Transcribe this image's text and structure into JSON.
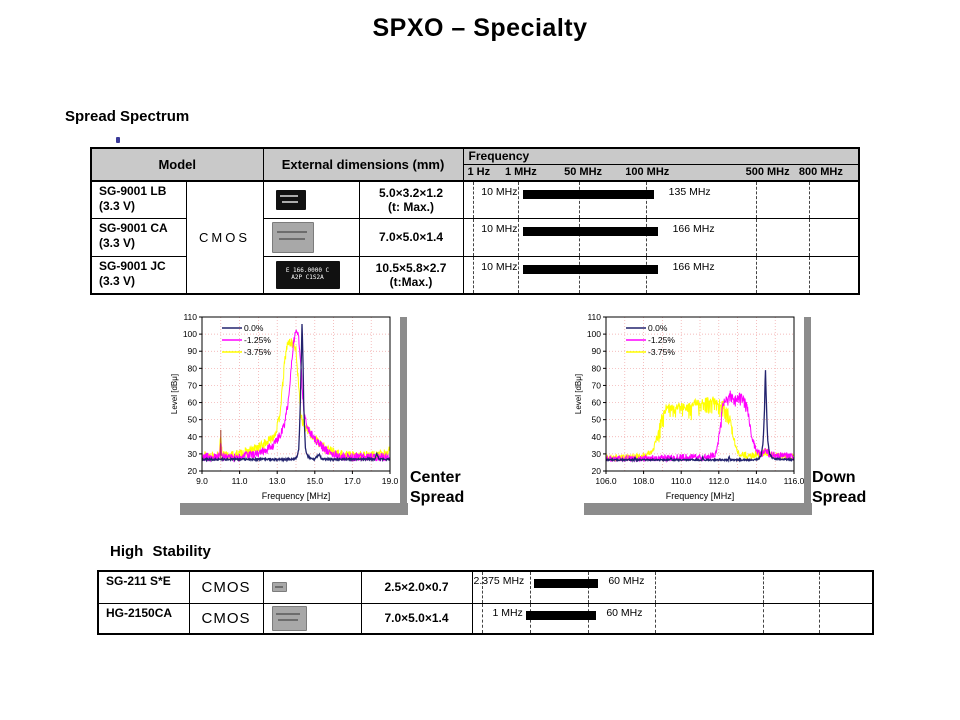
{
  "page": {
    "title": "SPXO – Specialty"
  },
  "labels": {
    "spread_spectrum": "Spread Spectrum",
    "high_stability": "High Stability",
    "center_spread_line1": "Center",
    "center_spread_line2": "Spread",
    "down_spread_line1": "Down",
    "down_spread_line2": "Spread"
  },
  "colors": {
    "header_gray": "#c9c9c9",
    "shadow_gray": "#8c8c8c",
    "bar_black": "#000000",
    "series_navy": "#23236e",
    "series_magenta": "#ff00ff",
    "series_yellow": "#ffff00",
    "grid_pink": "#f0a4a4"
  },
  "spread_table": {
    "header_model": "Model",
    "header_dimensions": "External dimensions (mm)",
    "header_frequency": "Frequency",
    "scale_labels": [
      "1 Hz",
      "1 MHz",
      "50 MHz",
      "100 MHz",
      "500 MHz",
      "800 MHz"
    ],
    "output_type": "CMOS",
    "rows": [
      {
        "model": "SG-9001 LB",
        "voltage": "(3.3 V)",
        "dims": "5.0×3.2×1.2",
        "dims_note": "(t: Max.)",
        "freq_start": "10 MHz",
        "freq_end": "135 MHz"
      },
      {
        "model": "SG-9001 CA",
        "voltage": "(3.3 V)",
        "dims": "7.0×5.0×1.4",
        "dims_note": "",
        "freq_start": "10 MHz",
        "freq_end": "166 MHz"
      },
      {
        "model": "SG-9001 JC",
        "voltage": "(3.3 V)",
        "dims": "10.5×5.8×2.7",
        "dims_note": "(t:Max.)",
        "freq_start": "10 MHz",
        "freq_end": "166 MHz"
      }
    ],
    "chip3_text_line1": "E 166.0000 C",
    "chip3_text_line2": "A2P C1S2A"
  },
  "stability_table": {
    "rows": [
      {
        "model": "SG-211 S*E",
        "output": "CMOS",
        "dims": "2.5×2.0×0.7",
        "freq_start": "2.375 MHz",
        "freq_end": "60 MHz"
      },
      {
        "model": "HG-2150CA",
        "output": "CMOS",
        "dims": "7.0×5.0×1.4",
        "freq_start": "1 MHz",
        "freq_end": "60 MHz"
      }
    ]
  },
  "chart_data": [
    {
      "type": "line",
      "name": "center_spread",
      "xlabel": "Frequency [MHz]",
      "ylabel": "Level [dBμ]",
      "xlim": [
        9.0,
        19.0
      ],
      "ylim": [
        20,
        110
      ],
      "x_grid_step": 1.0,
      "y_grid_step": 10,
      "grid_color": "#f0a4a4",
      "noise_floor": 27,
      "xtick_values": [
        9,
        11,
        13,
        15,
        17,
        19
      ],
      "xtick_labels": [
        "9.0",
        "11.0",
        "13.0",
        "15.0",
        "17.0",
        "19.0"
      ],
      "ytick_values": [
        20,
        30,
        40,
        50,
        60,
        70,
        80,
        90,
        100,
        110
      ],
      "ytick_labels": [
        "20",
        "30",
        "40",
        "50",
        "60",
        "70",
        "80",
        "90",
        "100",
        "110"
      ],
      "legend": [
        {
          "label": "0.0%",
          "color": "#23236e"
        },
        {
          "label": "-1.25%",
          "color": "#ff00ff"
        },
        {
          "label": "-3.75%",
          "color": "#ffff00"
        }
      ],
      "marker": {
        "x": 10.0,
        "y": 44,
        "color": "#a03420"
      },
      "series": [
        {
          "name": "-3.75%",
          "color": "#ffff00",
          "noise": 2.8,
          "lw": 1,
          "envelope": [
            [
              9.0,
              30
            ],
            [
              9.3,
              29
            ],
            [
              9.6,
              29
            ],
            [
              9.9,
              29
            ],
            [
              9.95,
              33
            ],
            [
              10.0,
              41
            ],
            [
              10.05,
              33
            ],
            [
              10.1,
              29
            ],
            [
              10.6,
              29
            ],
            [
              11.0,
              30
            ],
            [
              11.4,
              31
            ],
            [
              11.8,
              33
            ],
            [
              12.2,
              35
            ],
            [
              12.6,
              38
            ],
            [
              12.9,
              42
            ],
            [
              13.1,
              50
            ],
            [
              13.25,
              65
            ],
            [
              13.4,
              84
            ],
            [
              13.5,
              92
            ],
            [
              13.6,
              95
            ],
            [
              13.75,
              95
            ],
            [
              13.9,
              94
            ],
            [
              14.0,
              90
            ],
            [
              14.05,
              84
            ],
            [
              14.15,
              68
            ],
            [
              14.25,
              54
            ],
            [
              14.4,
              47
            ],
            [
              14.6,
              44
            ],
            [
              14.8,
              41
            ],
            [
              15.0,
              39
            ],
            [
              15.2,
              37
            ],
            [
              15.5,
              34
            ],
            [
              15.8,
              32
            ],
            [
              16.2,
              30
            ],
            [
              16.8,
              29
            ],
            [
              17.5,
              29
            ],
            [
              18.2,
              29
            ],
            [
              18.7,
              30
            ],
            [
              19.0,
              32
            ]
          ]
        },
        {
          "name": "-1.25%",
          "color": "#ff00ff",
          "noise": 2.5,
          "lw": 1,
          "envelope": [
            [
              9.0,
              28
            ],
            [
              9.95,
              28
            ],
            [
              10.0,
              37
            ],
            [
              10.05,
              28
            ],
            [
              10.8,
              28
            ],
            [
              11.5,
              29
            ],
            [
              12.0,
              30
            ],
            [
              12.4,
              32
            ],
            [
              12.8,
              35
            ],
            [
              13.0,
              38
            ],
            [
              13.2,
              42
            ],
            [
              13.4,
              48
            ],
            [
              13.55,
              58
            ],
            [
              13.7,
              74
            ],
            [
              13.8,
              88
            ],
            [
              13.9,
              97
            ],
            [
              14.0,
              101
            ],
            [
              14.05,
              101
            ],
            [
              14.15,
              97
            ],
            [
              14.25,
              85
            ],
            [
              14.35,
              65
            ],
            [
              14.45,
              52
            ],
            [
              14.6,
              46
            ],
            [
              14.8,
              42
            ],
            [
              15.0,
              39
            ],
            [
              15.2,
              36
            ],
            [
              15.5,
              33
            ],
            [
              15.9,
              30
            ],
            [
              16.4,
              28
            ],
            [
              17.0,
              28
            ],
            [
              18.0,
              28
            ],
            [
              19.0,
              28
            ]
          ]
        },
        {
          "name": "0.0%",
          "color": "#23236e",
          "noise": 0.5,
          "lw": 1.3,
          "envelope": [
            [
              9.0,
              26.8
            ],
            [
              13.6,
              26.8
            ],
            [
              13.9,
              27.2
            ],
            [
              14.05,
              28
            ],
            [
              14.15,
              33
            ],
            [
              14.22,
              55
            ],
            [
              14.28,
              85
            ],
            [
              14.32,
              107
            ],
            [
              14.36,
              90
            ],
            [
              14.42,
              55
            ],
            [
              14.5,
              33
            ],
            [
              14.6,
              29
            ],
            [
              14.75,
              27.5
            ],
            [
              15.0,
              27
            ],
            [
              15.25,
              30
            ],
            [
              15.35,
              27
            ],
            [
              16.0,
              26.8
            ],
            [
              18.2,
              27
            ],
            [
              18.3,
              30.5
            ],
            [
              18.4,
              27
            ],
            [
              19.0,
              26.8
            ]
          ]
        }
      ]
    },
    {
      "type": "line",
      "name": "down_spread",
      "xlabel": "Frequency [MHz]",
      "ylabel": "Level [dBμ]",
      "xlim": [
        106.0,
        116.0
      ],
      "ylim": [
        20,
        110
      ],
      "x_grid_step": 1.0,
      "y_grid_step": 10,
      "grid_color": "#f0a4a4",
      "noise_floor": 27,
      "xtick_values": [
        106,
        108,
        110,
        112,
        114,
        116
      ],
      "xtick_labels": [
        "106.0",
        "108.0",
        "110.0",
        "112.0",
        "114.0",
        "116.0"
      ],
      "ytick_values": [
        20,
        30,
        40,
        50,
        60,
        70,
        80,
        90,
        100,
        110
      ],
      "ytick_labels": [
        "20",
        "30",
        "40",
        "50",
        "60",
        "70",
        "80",
        "90",
        "100",
        "110"
      ],
      "legend": [
        {
          "label": "0.0%",
          "color": "#23236e"
        },
        {
          "label": "-1.25%",
          "color": "#ff00ff"
        },
        {
          "label": "-3.75%",
          "color": "#ffff00"
        }
      ],
      "series": [
        {
          "name": "-3.75%",
          "color": "#ffff00",
          "noise": 2,
          "notch": 9,
          "lw": 1,
          "envelope": [
            [
              106.0,
              28
            ],
            [
              106.5,
              27.5
            ],
            [
              107.2,
              28
            ],
            [
              107.8,
              28.5
            ],
            [
              108.2,
              29
            ],
            [
              108.5,
              32
            ],
            [
              108.7,
              40
            ],
            [
              108.9,
              50
            ],
            [
              109.1,
              56
            ],
            [
              109.3,
              58
            ],
            [
              109.6,
              57
            ],
            [
              110.0,
              58
            ],
            [
              110.3,
              57
            ],
            [
              110.7,
              60
            ],
            [
              111.0,
              60
            ],
            [
              111.3,
              61
            ],
            [
              111.6,
              62
            ],
            [
              111.9,
              61
            ],
            [
              112.1,
              60
            ],
            [
              112.3,
              59
            ],
            [
              112.45,
              56
            ],
            [
              112.6,
              50
            ],
            [
              112.75,
              42
            ],
            [
              112.9,
              34
            ],
            [
              113.1,
              30
            ],
            [
              113.4,
              29
            ],
            [
              113.8,
              29
            ],
            [
              114.2,
              30
            ],
            [
              114.5,
              31
            ],
            [
              114.8,
              29
            ],
            [
              115.3,
              28.5
            ],
            [
              116.0,
              28
            ]
          ]
        },
        {
          "name": "-1.25%",
          "color": "#ff00ff",
          "noise": 2,
          "notch": 5,
          "lw": 1,
          "envelope": [
            [
              106.0,
              27
            ],
            [
              107.0,
              27
            ],
            [
              108.0,
              27.5
            ],
            [
              109.0,
              27.5
            ],
            [
              110.0,
              28
            ],
            [
              111.0,
              28
            ],
            [
              111.5,
              28.5
            ],
            [
              111.8,
              30
            ],
            [
              111.95,
              36
            ],
            [
              112.1,
              48
            ],
            [
              112.2,
              58
            ],
            [
              112.35,
              62
            ],
            [
              112.5,
              63
            ],
            [
              112.65,
              66
            ],
            [
              112.8,
              63
            ],
            [
              112.95,
              62
            ],
            [
              113.1,
              65
            ],
            [
              113.25,
              64
            ],
            [
              113.4,
              61
            ],
            [
              113.55,
              55
            ],
            [
              113.65,
              47
            ],
            [
              113.8,
              38
            ],
            [
              113.95,
              33
            ],
            [
              114.1,
              31
            ],
            [
              114.3,
              30
            ],
            [
              114.5,
              32
            ],
            [
              114.7,
              30
            ],
            [
              115.0,
              29
            ],
            [
              115.5,
              29
            ],
            [
              116.0,
              28
            ]
          ]
        },
        {
          "name": "0.0%",
          "color": "#23236e",
          "noise": 0.4,
          "lw": 1.3,
          "envelope": [
            [
              106.0,
              26.5
            ],
            [
              107.5,
              26.5
            ],
            [
              107.55,
              28
            ],
            [
              107.6,
              26.5
            ],
            [
              109.4,
              26.5
            ],
            [
              109.45,
              28
            ],
            [
              109.5,
              26.5
            ],
            [
              111.1,
              26.5
            ],
            [
              111.15,
              28
            ],
            [
              111.2,
              26.5
            ],
            [
              112.5,
              26.5
            ],
            [
              112.55,
              28.5
            ],
            [
              112.6,
              26.5
            ],
            [
              113.9,
              26.5
            ],
            [
              114.1,
              27
            ],
            [
              114.25,
              29
            ],
            [
              114.35,
              36
            ],
            [
              114.42,
              52
            ],
            [
              114.48,
              80
            ],
            [
              114.53,
              60
            ],
            [
              114.6,
              38
            ],
            [
              114.7,
              30
            ],
            [
              114.85,
              27.5
            ],
            [
              115.1,
              27
            ],
            [
              116.0,
              26.5
            ]
          ]
        }
      ]
    }
  ]
}
